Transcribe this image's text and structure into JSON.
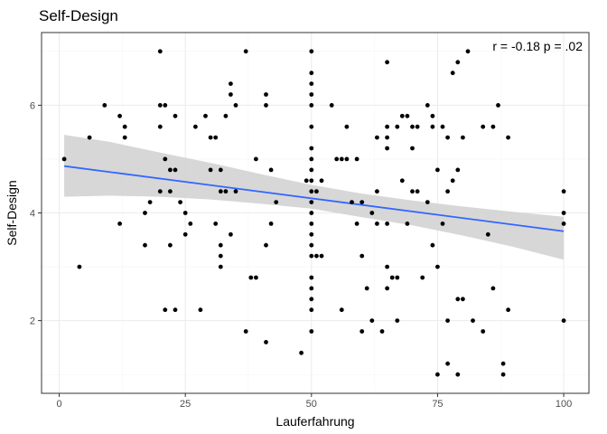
{
  "chart_data": {
    "type": "scatter",
    "title": "Self-Design",
    "xlabel": "Lauferfahrung",
    "ylabel": "Self-Design",
    "xlim": [
      -3.5,
      105
    ],
    "ylim": [
      0.65,
      7.35
    ],
    "x_ticks": [
      0,
      25,
      50,
      75,
      100
    ],
    "y_ticks": [
      2,
      4,
      6
    ],
    "grid": true,
    "annotation": "r = -0.18  p = .02",
    "colors": {
      "points": "#000000",
      "trend_line": "#3366ff",
      "confidence_band": "#d3d3d3",
      "panel_border": "#333333",
      "grid_major": "#ebebeb",
      "grid_minor": "#f5f5f5"
    },
    "trend": {
      "x": [
        1,
        100
      ],
      "y": [
        4.87,
        3.66
      ]
    },
    "confidence_band": {
      "x": [
        1,
        10,
        20,
        30,
        40,
        50,
        60,
        70,
        80,
        90,
        100
      ],
      "lower": [
        4.3,
        4.32,
        4.3,
        4.25,
        4.17,
        4.08,
        3.92,
        3.77,
        3.58,
        3.37,
        3.13
      ],
      "upper": [
        5.45,
        5.32,
        5.12,
        4.93,
        4.72,
        4.52,
        4.36,
        4.23,
        4.12,
        4.02,
        3.93
      ]
    },
    "points": [
      [
        1,
        5.0
      ],
      [
        4,
        3.0
      ],
      [
        6,
        5.4
      ],
      [
        9,
        6.0
      ],
      [
        12,
        5.8
      ],
      [
        12,
        3.8
      ],
      [
        13,
        5.6
      ],
      [
        13,
        5.4
      ],
      [
        17,
        4.0
      ],
      [
        17,
        3.4
      ],
      [
        18,
        4.2
      ],
      [
        20,
        7.0
      ],
      [
        20,
        6.0
      ],
      [
        20,
        5.6
      ],
      [
        20,
        4.4
      ],
      [
        21,
        6.0
      ],
      [
        21,
        5.0
      ],
      [
        21,
        2.2
      ],
      [
        22,
        4.8
      ],
      [
        22,
        4.4
      ],
      [
        22,
        3.4
      ],
      [
        23,
        5.8
      ],
      [
        23,
        4.8
      ],
      [
        23,
        2.2
      ],
      [
        24,
        4.2
      ],
      [
        25,
        4.0
      ],
      [
        25,
        3.6
      ],
      [
        26,
        3.8
      ],
      [
        27,
        5.6
      ],
      [
        28,
        2.2
      ],
      [
        29,
        5.8
      ],
      [
        30,
        5.4
      ],
      [
        30,
        4.8
      ],
      [
        31,
        5.4
      ],
      [
        31,
        3.8
      ],
      [
        32,
        4.8
      ],
      [
        32,
        4.4
      ],
      [
        32,
        3.4
      ],
      [
        32,
        3.2
      ],
      [
        32,
        3.0
      ],
      [
        33,
        5.8
      ],
      [
        33,
        4.4
      ],
      [
        34,
        6.4
      ],
      [
        34,
        6.2
      ],
      [
        34,
        3.6
      ],
      [
        35,
        6.0
      ],
      [
        35,
        4.4
      ],
      [
        37,
        7.0
      ],
      [
        37,
        1.8
      ],
      [
        38,
        2.8
      ],
      [
        39,
        2.8
      ],
      [
        39,
        5.0
      ],
      [
        41,
        6.2
      ],
      [
        41,
        6.0
      ],
      [
        41,
        3.4
      ],
      [
        41,
        1.6
      ],
      [
        42,
        4.8
      ],
      [
        42,
        3.8
      ],
      [
        43,
        4.2
      ],
      [
        48,
        1.4
      ],
      [
        49,
        4.6
      ],
      [
        50,
        7.0
      ],
      [
        50,
        6.6
      ],
      [
        50,
        6.4
      ],
      [
        50,
        6.2
      ],
      [
        50,
        6.0
      ],
      [
        50,
        5.6
      ],
      [
        50,
        5.2
      ],
      [
        50,
        5.0
      ],
      [
        50,
        4.8
      ],
      [
        50,
        4.6
      ],
      [
        50,
        4.4
      ],
      [
        50,
        4.2
      ],
      [
        50,
        4.0
      ],
      [
        50,
        3.8
      ],
      [
        50,
        3.6
      ],
      [
        50,
        3.4
      ],
      [
        50,
        3.2
      ],
      [
        50,
        2.8
      ],
      [
        50,
        2.6
      ],
      [
        50,
        2.4
      ],
      [
        50,
        2.2
      ],
      [
        50,
        1.8
      ],
      [
        51,
        4.4
      ],
      [
        51,
        3.2
      ],
      [
        52,
        3.2
      ],
      [
        52,
        4.6
      ],
      [
        54,
        6.0
      ],
      [
        55,
        5.0
      ],
      [
        56,
        5.0
      ],
      [
        56,
        2.2
      ],
      [
        57,
        5.6
      ],
      [
        57,
        5.0
      ],
      [
        58,
        4.2
      ],
      [
        59,
        5.0
      ],
      [
        59,
        3.8
      ],
      [
        60,
        4.2
      ],
      [
        60,
        3.2
      ],
      [
        60,
        1.8
      ],
      [
        61,
        2.6
      ],
      [
        62,
        4.0
      ],
      [
        62,
        2.0
      ],
      [
        63,
        5.4
      ],
      [
        63,
        4.4
      ],
      [
        63,
        3.8
      ],
      [
        64,
        1.8
      ],
      [
        65,
        6.8
      ],
      [
        65,
        5.6
      ],
      [
        65,
        5.4
      ],
      [
        65,
        5.2
      ],
      [
        65,
        3.8
      ],
      [
        65,
        3.0
      ],
      [
        65,
        2.6
      ],
      [
        66,
        2.8
      ],
      [
        67,
        5.6
      ],
      [
        67,
        2.8
      ],
      [
        67,
        2.0
      ],
      [
        68,
        5.8
      ],
      [
        68,
        4.6
      ],
      [
        69,
        5.8
      ],
      [
        69,
        3.8
      ],
      [
        70,
        5.6
      ],
      [
        70,
        5.2
      ],
      [
        70,
        4.4
      ],
      [
        71,
        5.6
      ],
      [
        71,
        4.4
      ],
      [
        72,
        2.8
      ],
      [
        73,
        6.0
      ],
      [
        73,
        4.2
      ],
      [
        74,
        5.8
      ],
      [
        74,
        5.6
      ],
      [
        74,
        3.4
      ],
      [
        75,
        4.8
      ],
      [
        75,
        3.0
      ],
      [
        75,
        1.0
      ],
      [
        76,
        5.6
      ],
      [
        76,
        3.8
      ],
      [
        77,
        5.4
      ],
      [
        77,
        4.4
      ],
      [
        77,
        2.0
      ],
      [
        77,
        1.2
      ],
      [
        78,
        6.6
      ],
      [
        78,
        4.6
      ],
      [
        79,
        6.8
      ],
      [
        79,
        4.8
      ],
      [
        79,
        2.4
      ],
      [
        79,
        1.0
      ],
      [
        80,
        5.4
      ],
      [
        80,
        2.4
      ],
      [
        81,
        7.0
      ],
      [
        82,
        2.0
      ],
      [
        84,
        5.6
      ],
      [
        84,
        1.8
      ],
      [
        85,
        3.6
      ],
      [
        86,
        5.6
      ],
      [
        86,
        2.6
      ],
      [
        87,
        6.0
      ],
      [
        88,
        1.2
      ],
      [
        88,
        1.0
      ],
      [
        89,
        5.4
      ],
      [
        89,
        2.2
      ],
      [
        100,
        4.4
      ],
      [
        100,
        4.0
      ],
      [
        100,
        3.8
      ],
      [
        100,
        2.0
      ]
    ]
  }
}
